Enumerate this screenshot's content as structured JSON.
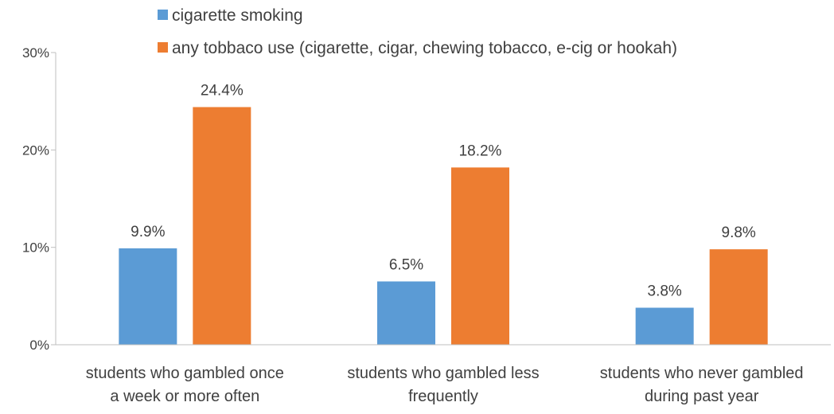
{
  "chart_data": {
    "type": "bar",
    "title": "",
    "xlabel": "",
    "ylabel": "",
    "categories": [
      [
        "students who gambled once",
        "a week or more often"
      ],
      [
        "students who gambled less",
        "frequently"
      ],
      [
        "students who never gambled",
        "during past year"
      ]
    ],
    "series": [
      {
        "name": "cigarette smoking",
        "color": "#5B9BD5",
        "values": [
          9.9,
          6.5,
          3.8
        ],
        "labels": [
          "9.9%",
          "6.5%",
          "3.8%"
        ]
      },
      {
        "name": "any tobbaco use (cigarette, cigar, chewing tobacco, e-cig or hookah)",
        "color": "#ED7D31",
        "values": [
          24.4,
          18.2,
          9.8
        ],
        "labels": [
          "24.4%",
          "18.2%",
          "9.8%"
        ]
      }
    ],
    "ylim": [
      0,
      30
    ],
    "yticks": [
      0,
      10,
      20,
      30
    ],
    "ytick_labels": [
      "0%",
      "10%",
      "20%",
      "30%"
    ],
    "legend_position": "top",
    "grid": false
  }
}
